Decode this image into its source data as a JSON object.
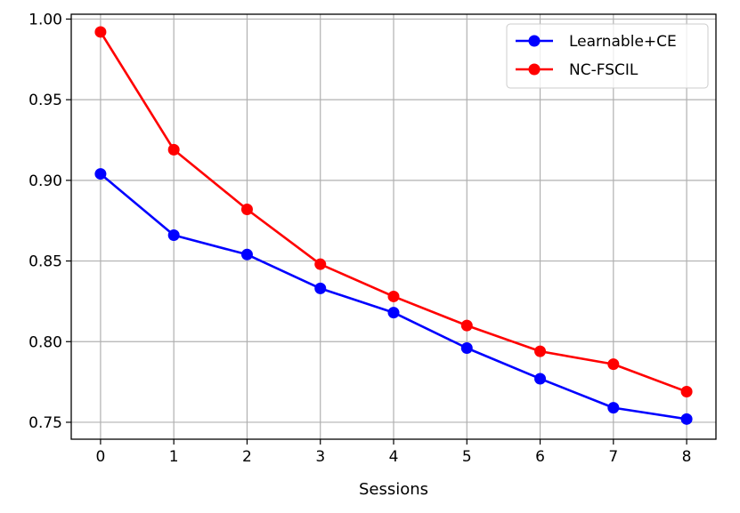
{
  "chart_data": {
    "type": "line",
    "xlabel": "Sessions",
    "ylabel": "",
    "x": [
      0,
      1,
      2,
      3,
      4,
      5,
      6,
      7,
      8
    ],
    "xlim": [
      -0.4,
      8.4
    ],
    "ylim": [
      0.7395,
      1.003
    ],
    "xticks": [
      "0",
      "1",
      "2",
      "3",
      "4",
      "5",
      "6",
      "7",
      "8"
    ],
    "yticks": [
      "0.75",
      "0.80",
      "0.85",
      "0.90",
      "0.95",
      "1.00"
    ],
    "grid": true,
    "legend_position": "top-right",
    "series": [
      {
        "name": "Learnable+CE",
        "color": "#0000ff",
        "values": [
          0.904,
          0.866,
          0.854,
          0.833,
          0.818,
          0.796,
          0.777,
          0.759,
          0.752
        ]
      },
      {
        "name": "NC-FSCIL",
        "color": "#ff0000",
        "values": [
          0.992,
          0.919,
          0.882,
          0.848,
          0.828,
          0.81,
          0.794,
          0.786,
          0.769
        ]
      }
    ]
  }
}
